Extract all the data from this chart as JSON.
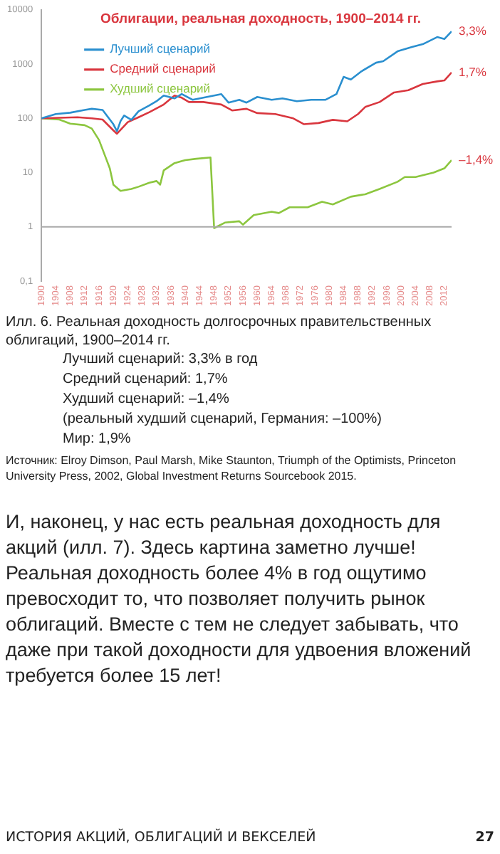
{
  "chart_data": {
    "type": "line",
    "title": "Облигации, реальная доходность, 1900–2014 гг.",
    "log": "y",
    "grid": false,
    "legend": "top left",
    "marker": "none",
    "line_style": "solid",
    "xlim": [
      1900,
      2014
    ],
    "xticks": [
      1900,
      1904,
      1908,
      1912,
      1916,
      1920,
      1924,
      1928,
      1932,
      1936,
      1940,
      1944,
      1948,
      1952,
      1956,
      1960,
      1964,
      1968,
      1972,
      1976,
      1980,
      1984,
      1988,
      1992,
      1996,
      2000,
      2004,
      2008,
      2012
    ],
    "ylim": [
      0.1,
      10000
    ],
    "yticks": [
      {
        "value": 0.1,
        "label": "0,1"
      },
      1,
      10,
      100,
      1000,
      10000
    ],
    "ref_lines": [
      {
        "axis": "y",
        "value": 1,
        "color": "#aaaaaa"
      }
    ],
    "series": [
      {
        "name": "Лучший сценарий",
        "color": "#2a8fcf",
        "x": [
          1900,
          1904,
          1908,
          1912,
          1914,
          1917,
          1920,
          1921,
          1922,
          1923,
          1925,
          1927,
          1930,
          1932,
          1934,
          1937,
          1939,
          1942,
          1946,
          1950,
          1952,
          1955,
          1957,
          1960,
          1964,
          1967,
          1971,
          1975,
          1979,
          1982,
          1984,
          1986,
          1989,
          1993,
          1995,
          1999,
          2003,
          2006,
          2010,
          2012,
          2014
        ],
        "values": [
          100,
          120,
          127,
          143,
          150,
          143,
          78,
          58,
          89,
          113,
          94,
          135,
          173,
          207,
          263,
          233,
          280,
          220,
          248,
          280,
          195,
          220,
          195,
          248,
          220,
          233,
          207,
          220,
          220,
          280,
          580,
          520,
          740,
          1060,
          1130,
          1720,
          2070,
          2330,
          3150,
          2900,
          4000
        ]
      },
      {
        "name": "Средний сценарий",
        "color": "#d9363e",
        "x": [
          1900,
          1910,
          1914,
          1917,
          1920,
          1921,
          1924,
          1927,
          1930,
          1934,
          1937,
          1939,
          1941,
          1945,
          1950,
          1953,
          1957,
          1960,
          1965,
          1970,
          1973,
          1977,
          1981,
          1985,
          1988,
          1990,
          1994,
          1998,
          2002,
          2006,
          2010,
          2012,
          2014
        ],
        "values": [
          100,
          105,
          100,
          95,
          60,
          52,
          85,
          105,
          130,
          180,
          263,
          240,
          200,
          200,
          180,
          140,
          150,
          125,
          120,
          100,
          78,
          82,
          94,
          88,
          120,
          162,
          200,
          300,
          330,
          430,
          480,
          500,
          700
        ]
      },
      {
        "name": "Худший сценарий",
        "color": "#8cc63f",
        "x": [
          1900,
          1905,
          1908,
          1912,
          1914,
          1916,
          1918,
          1919,
          1920,
          1922,
          1925,
          1927,
          1930,
          1932,
          1933,
          1934,
          1937,
          1940,
          1943,
          1947,
          1948,
          1951,
          1955,
          1956,
          1959,
          1964,
          1966,
          1969,
          1974,
          1978,
          1981,
          1986,
          1990,
          1994,
          1999,
          2001,
          2004,
          2009,
          2012,
          2014
        ],
        "values": [
          100,
          95,
          80,
          75,
          65,
          40,
          18,
          12,
          6,
          4.6,
          5,
          5.5,
          6.5,
          7,
          6,
          11,
          15,
          17,
          18,
          19,
          0.95,
          1.2,
          1.27,
          1.1,
          1.65,
          1.9,
          1.8,
          2.3,
          2.3,
          2.9,
          2.6,
          3.6,
          4,
          5,
          6.8,
          8.3,
          8.3,
          10,
          12,
          17
        ]
      }
    ],
    "annotations": [
      "3,3%",
      "1,7%",
      "–1,4%",
      "Илл. 6. Реальная доходность долгосрочных правительственных облигаций, 1900–2014 гг.",
      "Лучший сценарий: 3,3% в год",
      "Средний сценарий: 1,7%",
      "Худший сценарий: –1,4%",
      "(реальный худший сценарий, Германия: –100%)",
      "Мир: 1,9%",
      "Источник: Elroy Dimson, Paul Marsh, Mike Staunton, Triumph of the Optimists, Princeton University Press, 2002, Global Investment Returns Sourcebook 2015.",
      "И, наконец, у нас есть реальная доходность для акций (илл. 7). Здесь картина заметно лучше! Реальная доходность более 4% в год ощутимо превосходит то, что позволяет получить рынок облигаций. Вместе с тем не следует забывать, что даже при такой доходности для удвоения вложений требуется более 15 лет!",
      "ИСТОРИЯ АКЦИЙ, ОБЛИГАЦИЙ И ВЕКСЕЛЕЙ",
      "27"
    ]
  }
}
